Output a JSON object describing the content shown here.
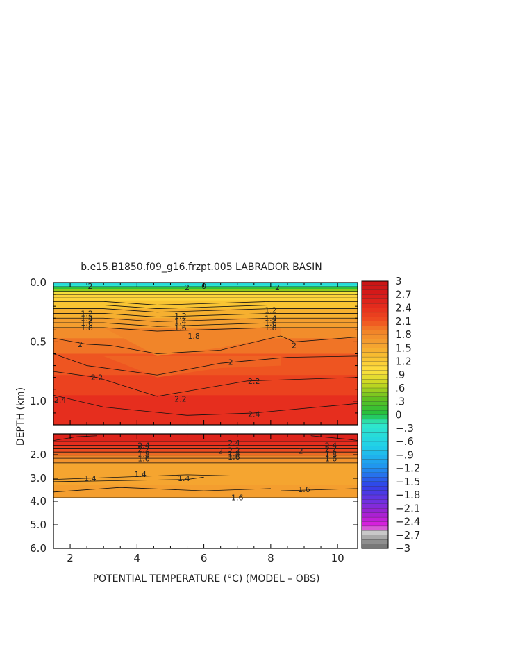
{
  "chart_data": {
    "type": "heatmap",
    "title": "b.e15.B1850.f09_g16.frzpt.005 LABRADOR BASIN",
    "xlabel": "POTENTIAL TEMPERATURE (°C) (MODEL – OBS)",
    "ylabel": "DEPTH (km)",
    "xlim": [
      1.5,
      10.6
    ],
    "x_ticks": [
      "2",
      "4",
      "6",
      "8",
      "10"
    ],
    "upper_panel": {
      "ylim": [
        0.0,
        1.2
      ],
      "y_ticks": [
        "0.0",
        "0.5",
        "1.0"
      ]
    },
    "lower_panel": {
      "ylim": [
        1.2,
        6.0
      ],
      "y_ticks": [
        "2.0",
        "3.0",
        "4.0",
        "5.0",
        "6.0"
      ],
      "data_bottom_km": 3.85
    },
    "colorbar": {
      "tick_labels": [
        "3",
        "2.7",
        "2.4",
        "2.1",
        "1.8",
        "1.5",
        "1.2",
        ".9",
        ".6",
        ".3",
        "0",
        "−.3",
        "−.6",
        "−.9",
        "−1.2",
        "−1.5",
        "−1.8",
        "−2.1",
        "−2.4",
        "−2.7",
        "−3"
      ],
      "range": [
        -3,
        3
      ]
    },
    "contour_labels_upper": [
      {
        "text": "2",
        "x": 2.6,
        "y": 0.03
      },
      {
        "text": "2",
        "x": 5.5,
        "y": 0.04
      },
      {
        "text": "0",
        "x": 6.0,
        "y": 0.03
      },
      {
        "text": "2",
        "x": 8.2,
        "y": 0.04
      },
      {
        "text": "1.2",
        "x": 2.5,
        "y": 0.26
      },
      {
        "text": "1.4",
        "x": 2.5,
        "y": 0.3
      },
      {
        "text": "1.6",
        "x": 2.5,
        "y": 0.34
      },
      {
        "text": "1.8",
        "x": 2.5,
        "y": 0.38
      },
      {
        "text": "1.2",
        "x": 5.3,
        "y": 0.28
      },
      {
        "text": "1.4",
        "x": 5.3,
        "y": 0.33
      },
      {
        "text": "1.6",
        "x": 5.3,
        "y": 0.38
      },
      {
        "text": "1.8",
        "x": 5.7,
        "y": 0.45
      },
      {
        "text": "1.2",
        "x": 8.0,
        "y": 0.23
      },
      {
        "text": "1.4",
        "x": 8.0,
        "y": 0.3
      },
      {
        "text": "1.6",
        "x": 8.0,
        "y": 0.34
      },
      {
        "text": "1.8",
        "x": 8.0,
        "y": 0.38
      },
      {
        "text": "2",
        "x": 2.3,
        "y": 0.52
      },
      {
        "text": "2",
        "x": 6.8,
        "y": 0.67
      },
      {
        "text": "2",
        "x": 8.7,
        "y": 0.53
      },
      {
        "text": "2.2",
        "x": 2.8,
        "y": 0.8
      },
      {
        "text": "2.2",
        "x": 5.3,
        "y": 0.98
      },
      {
        "text": "2.2",
        "x": 7.5,
        "y": 0.83
      },
      {
        "text": "2.4",
        "x": 1.7,
        "y": 0.99
      },
      {
        "text": "2.4",
        "x": 7.5,
        "y": 1.11
      }
    ],
    "contour_labels_lower": [
      {
        "text": "2.4",
        "x": 4.2,
        "y": 1.72
      },
      {
        "text": "2.4",
        "x": 6.9,
        "y": 1.64
      },
      {
        "text": "2.4",
        "x": 9.8,
        "y": 1.72
      },
      {
        "text": "2.2",
        "x": 4.2,
        "y": 1.82
      },
      {
        "text": "2.2",
        "x": 6.9,
        "y": 1.86
      },
      {
        "text": "2.2",
        "x": 9.8,
        "y": 1.82
      },
      {
        "text": "2",
        "x": 6.5,
        "y": 1.88
      },
      {
        "text": "2",
        "x": 8.9,
        "y": 1.88
      },
      {
        "text": "1.8",
        "x": 4.2,
        "y": 1.99
      },
      {
        "text": "1.8",
        "x": 6.9,
        "y": 1.97
      },
      {
        "text": "1.8",
        "x": 9.8,
        "y": 1.99
      },
      {
        "text": "1.6",
        "x": 4.2,
        "y": 2.16
      },
      {
        "text": "1.6",
        "x": 6.9,
        "y": 2.09
      },
      {
        "text": "1.6",
        "x": 9.8,
        "y": 2.16
      },
      {
        "text": "1.4",
        "x": 2.6,
        "y": 3.0
      },
      {
        "text": "1.4",
        "x": 4.1,
        "y": 2.82
      },
      {
        "text": "1.4",
        "x": 5.4,
        "y": 3.0
      },
      {
        "text": "1.6",
        "x": 9.0,
        "y": 3.48
      },
      {
        "text": "1.6",
        "x": 7.0,
        "y": 3.83
      }
    ]
  }
}
